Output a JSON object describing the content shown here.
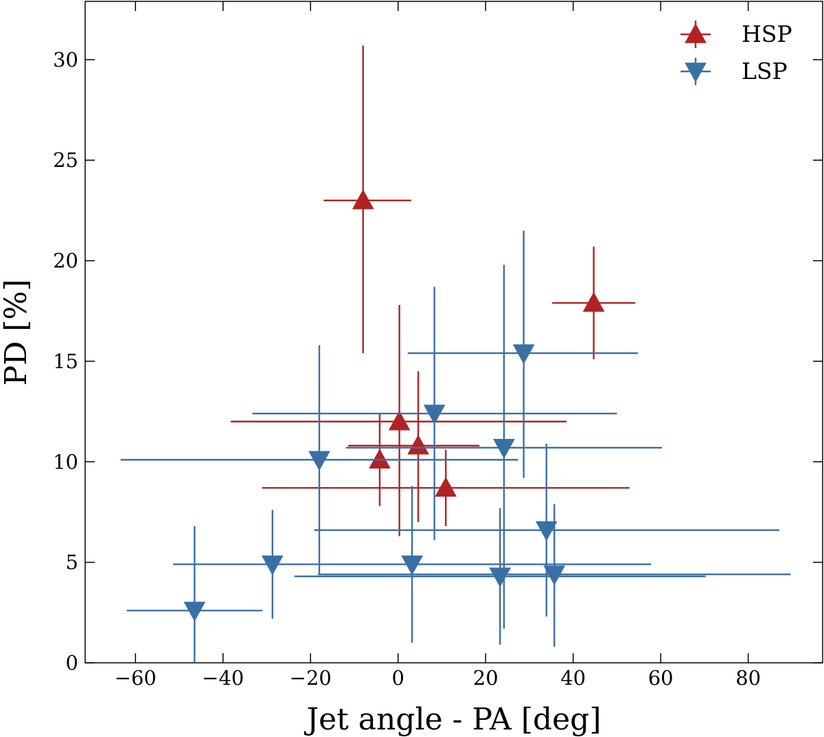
{
  "chart_data": {
    "type": "scatter",
    "title": "",
    "xlabel": "Jet angle - PA [deg]",
    "ylabel": "PD [%]",
    "xlim": [
      -71.5,
      97
    ],
    "ylim": [
      0,
      32.9
    ],
    "xticks": [
      -60,
      -40,
      -20,
      0,
      20,
      40,
      60,
      80
    ],
    "yticks": [
      0,
      5,
      10,
      15,
      20,
      25,
      30
    ],
    "xtick_labels": [
      "−60",
      "−40",
      "−20",
      "0",
      "20",
      "40",
      "60",
      "80"
    ],
    "ytick_labels": [
      "0",
      "5",
      "10",
      "15",
      "20",
      "25",
      "30"
    ],
    "grid": false,
    "legend_position": "top-right",
    "series": [
      {
        "name": "HSP",
        "color": "#b22222",
        "marker": "triangle-up",
        "points": [
          {
            "x": -8,
            "y": 23.0,
            "xerr": [
              9,
              11
            ],
            "yerr": [
              7.6,
              7.7
            ]
          },
          {
            "x": 44.7,
            "y": 17.9,
            "xerr": [
              9.5,
              9.5
            ],
            "yerr": [
              2.8,
              2.8
            ]
          },
          {
            "x": 0.3,
            "y": 12.0,
            "xerr": [
              38.5,
              38.2
            ],
            "yerr": [
              5.7,
              5.8
            ]
          },
          {
            "x": -4.2,
            "y": 10.1,
            "xerr": [
              0,
              0
            ],
            "yerr": [
              2.3,
              2.3
            ]
          },
          {
            "x": 4.6,
            "y": 10.8,
            "xerr": [
              16,
              14
            ],
            "yerr": [
              3.8,
              3.7
            ]
          },
          {
            "x": 10.9,
            "y": 8.7,
            "xerr": [
              42,
              42
            ],
            "yerr": [
              1.9,
              1.9
            ]
          }
        ]
      },
      {
        "name": "LSP",
        "color": "#3a6fa5",
        "marker": "triangle-down",
        "points": [
          {
            "x": 28.7,
            "y": 15.4,
            "xerr": [
              26.5,
              26.1
            ],
            "yerr": [
              6.2,
              6.1
            ]
          },
          {
            "x": 8.3,
            "y": 12.4,
            "xerr": [
              41.6,
              41.7
            ],
            "yerr": [
              6.3,
              6.3
            ]
          },
          {
            "x": 24.2,
            "y": 10.7,
            "xerr": [
              36.1,
              36.1
            ],
            "yerr": [
              9.0,
              9.1
            ]
          },
          {
            "x": -18.0,
            "y": 10.1,
            "xerr": [
              45.4,
              45.4
            ],
            "yerr": [
              5.7,
              5.7
            ]
          },
          {
            "x": 33.9,
            "y": 6.6,
            "xerr": [
              53.1,
              53.2
            ],
            "yerr": [
              4.3,
              4.3
            ]
          },
          {
            "x": -28.7,
            "y": 4.9,
            "xerr": [
              22.7,
              86.5
            ],
            "yerr": [
              2.7,
              2.7
            ]
          },
          {
            "x": 3.2,
            "y": 4.9,
            "xerr": [
              0,
              0
            ],
            "yerr": [
              3.9,
              3.9
            ]
          },
          {
            "x": 23.3,
            "y": 4.3,
            "xerr": [
              47,
              47
            ],
            "yerr": [
              3.4,
              3.4
            ]
          },
          {
            "x": 35.7,
            "y": 4.4,
            "xerr": [
              54,
              54
            ],
            "yerr": [
              3.6,
              3.5
            ]
          },
          {
            "x": -46.5,
            "y": 2.6,
            "xerr": [
              15.5,
              15.5
            ],
            "yerr": [
              2.6,
              4.2
            ]
          }
        ]
      }
    ]
  }
}
